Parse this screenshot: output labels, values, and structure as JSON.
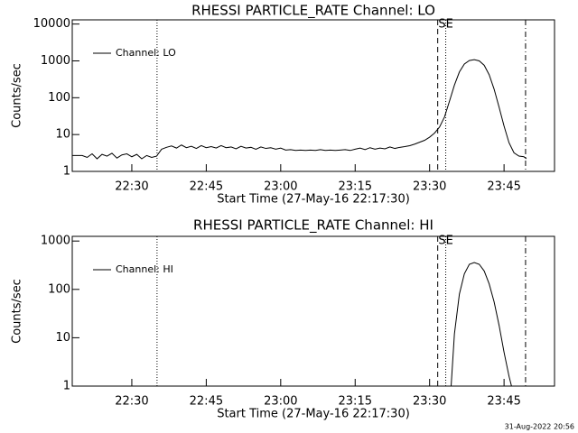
{
  "chart_data": [
    {
      "type": "line",
      "title": "RHESSI PARTICLE_RATE Channel: LO",
      "xlabel": "Start Time (27-May-16 22:17:30)",
      "ylabel": "Counts/sec",
      "log_y": true,
      "ylim": [
        1,
        13000
      ],
      "yticks": [
        1,
        10,
        100,
        1000,
        10000
      ],
      "xlim": [
        "22:18:00",
        "23:55:10"
      ],
      "xticks": [
        "22:30",
        "22:45",
        "23:00",
        "23:15",
        "23:30",
        "23:45"
      ],
      "legend": "upper left",
      "markers": [
        {
          "x": "22:35:05",
          "style": "dotted"
        },
        {
          "x": "23:31:38",
          "style": "dashed"
        },
        {
          "x": "23:33:15",
          "style": "dotted"
        },
        {
          "x": "23:49:20",
          "style": "dash-dot"
        }
      ],
      "annotation": {
        "text": "SE",
        "x": "23:33:15"
      },
      "series": [
        {
          "name": "Channel: LO",
          "color": "#000000",
          "x": [
            "22:18",
            "22:19",
            "22:20",
            "22:21",
            "22:22",
            "22:23",
            "22:24",
            "22:25",
            "22:26",
            "22:27",
            "22:28",
            "22:29",
            "22:30",
            "22:31",
            "22:32",
            "22:33",
            "22:34",
            "22:35",
            "22:35:05",
            "22:36",
            "22:37",
            "22:38",
            "22:39",
            "22:40",
            "22:41",
            "22:42",
            "22:43",
            "22:44",
            "22:45",
            "22:46",
            "22:47",
            "22:48",
            "22:49",
            "22:50",
            "22:51",
            "22:52",
            "22:53",
            "22:54",
            "22:55",
            "22:56",
            "22:57",
            "22:58",
            "22:59",
            "23:00",
            "23:01",
            "23:02",
            "23:03",
            "23:04",
            "23:05",
            "23:06",
            "23:07",
            "23:08",
            "23:09",
            "23:10",
            "23:11",
            "23:12",
            "23:13",
            "23:14",
            "23:15",
            "23:16",
            "23:17",
            "23:18",
            "23:19",
            "23:20",
            "23:21",
            "23:22",
            "23:23",
            "23:24",
            "23:25",
            "23:26",
            "23:27",
            "23:28",
            "23:29",
            "23:30",
            "23:31",
            "23:32",
            "23:33",
            "23:34",
            "23:35",
            "23:36",
            "23:37",
            "23:38",
            "23:39",
            "23:40",
            "23:41",
            "23:42",
            "23:43",
            "23:44",
            "23:45",
            "23:46",
            "23:47",
            "23:48",
            "23:49",
            "23:49:30"
          ],
          "values": [
            2.7,
            2.7,
            2.7,
            2.4,
            3.0,
            2.2,
            2.9,
            2.6,
            3.1,
            2.3,
            2.8,
            3.0,
            2.5,
            2.9,
            2.2,
            2.7,
            2.4,
            2.6,
            2.7,
            4.0,
            4.5,
            4.9,
            4.3,
            5.2,
            4.4,
            4.8,
            4.2,
            5.0,
            4.4,
            4.7,
            4.3,
            5.0,
            4.4,
            4.6,
            4.1,
            4.8,
            4.3,
            4.5,
            4.0,
            4.6,
            4.2,
            4.4,
            4.0,
            4.3,
            3.8,
            3.9,
            3.7,
            3.8,
            3.7,
            3.8,
            3.7,
            3.9,
            3.7,
            3.8,
            3.7,
            3.8,
            3.9,
            3.7,
            4.0,
            4.3,
            3.9,
            4.4,
            4.0,
            4.3,
            4.1,
            4.6,
            4.2,
            4.5,
            4.7,
            5.0,
            5.5,
            6.2,
            7.0,
            8.5,
            11,
            16,
            30,
            80,
            220,
            500,
            820,
            1020,
            1080,
            1000,
            760,
            420,
            170,
            55,
            17,
            6,
            3.2,
            2.6,
            2.5,
            2.2
          ]
        }
      ]
    },
    {
      "type": "line",
      "title": "RHESSI PARTICLE_RATE Channel: HI",
      "xlabel": "Start Time (27-May-16 22:17:30)",
      "ylabel": "Counts/sec",
      "log_y": true,
      "ylim": [
        1,
        1250
      ],
      "yticks": [
        1,
        10,
        100,
        1000
      ],
      "xlim": [
        "22:18:00",
        "23:55:10"
      ],
      "xticks": [
        "22:30",
        "22:45",
        "23:00",
        "23:15",
        "23:30",
        "23:45"
      ],
      "legend": "upper left",
      "markers": [
        {
          "x": "22:35:05",
          "style": "dotted"
        },
        {
          "x": "23:31:38",
          "style": "dashed"
        },
        {
          "x": "23:33:15",
          "style": "dotted"
        },
        {
          "x": "23:49:20",
          "style": "dash-dot"
        }
      ],
      "annotation": {
        "text": "SE",
        "x": "23:33:15"
      },
      "series": [
        {
          "name": "Channel: HI",
          "color": "#000000",
          "x": [
            "23:34:20",
            "23:35",
            "23:36",
            "23:37",
            "23:38",
            "23:39",
            "23:40",
            "23:41",
            "23:42",
            "23:43",
            "23:44",
            "23:45",
            "23:46",
            "23:46:30"
          ],
          "values": [
            1,
            12,
            80,
            210,
            330,
            360,
            330,
            240,
            130,
            55,
            18,
            5,
            1.6,
            1
          ]
        }
      ]
    }
  ],
  "footer": "31-Aug-2022 20:56"
}
